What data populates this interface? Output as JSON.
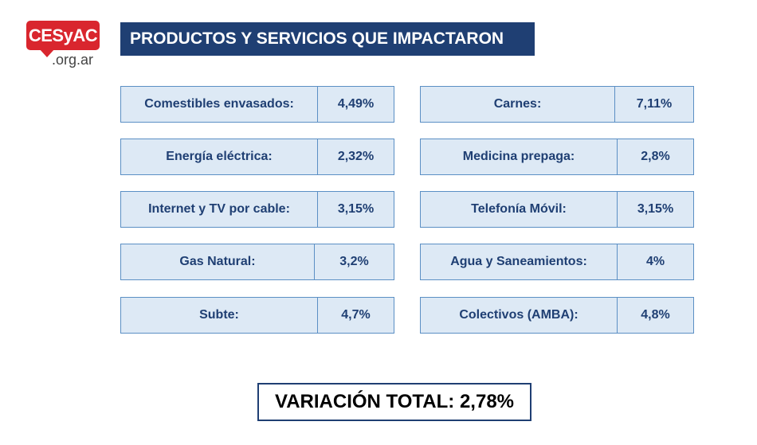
{
  "logo": {
    "brand": "CESyAC",
    "domain": ".org.ar"
  },
  "title": "PRODUCTOS Y SERVICIOS QUE IMPACTARON",
  "left_items": [
    {
      "label": "Comestibles envasados:",
      "value": "4,49%"
    },
    {
      "label": "Energía eléctrica:",
      "value": "2,32%"
    },
    {
      "label": "Internet y TV por cable:",
      "value": "3,15%"
    },
    {
      "label": "Gas Natural:",
      "value": "3,2%"
    },
    {
      "label": "Subte:",
      "value": "4,7%"
    }
  ],
  "right_items": [
    {
      "label": "Carnes:",
      "value": "7,11%"
    },
    {
      "label": "Medicina prepaga:",
      "value": "2,8%"
    },
    {
      "label": "Telefonía Móvil:",
      "value": "3,15%"
    },
    {
      "label": "Agua y Saneamientos:",
      "value": "4%"
    },
    {
      "label": "Colectivos (AMBA):",
      "value": "4,8%"
    }
  ],
  "total": "VARIACIÓN TOTAL: 2,78%",
  "colors": {
    "brand_red": "#d9262e",
    "navy": "#1f3f73",
    "cell_bg": "#dde9f5",
    "cell_border": "#5b8fc4"
  }
}
